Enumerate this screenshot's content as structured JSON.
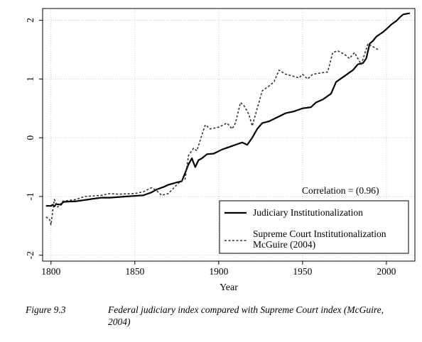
{
  "chart_data": {
    "type": "line",
    "xlabel": "Year",
    "ylabel": "",
    "xlim": [
      1795,
      2017
    ],
    "ylim": [
      -2.1,
      2.2
    ],
    "xticks": [
      1800,
      1850,
      1900,
      1950,
      2000
    ],
    "yticks": [
      -2,
      -1,
      0,
      1,
      2
    ],
    "grid": true,
    "legend_position": "bottom-right",
    "annotation": "Correlation = (0.96)",
    "series": [
      {
        "name": "Judiciary Institutionalization",
        "style": "solid",
        "x": [
          1797,
          1800,
          1801,
          1802,
          1803,
          1806,
          1807,
          1808,
          1815,
          1825,
          1830,
          1835,
          1845,
          1855,
          1860,
          1863,
          1867,
          1870,
          1875,
          1878,
          1880,
          1882,
          1884,
          1886,
          1888,
          1890,
          1893,
          1897,
          1902,
          1907,
          1912,
          1914,
          1917,
          1920,
          1923,
          1926,
          1930,
          1935,
          1940,
          1945,
          1950,
          1955,
          1958,
          1962,
          1967,
          1970,
          1975,
          1980,
          1983,
          1986,
          1988,
          1990,
          1992,
          1994,
          1996,
          1998,
          2000,
          2003,
          2006,
          2008,
          2010,
          2014
        ],
        "y": [
          -1.16,
          -1.16,
          -1.14,
          -1.17,
          -1.13,
          -1.14,
          -1.1,
          -1.09,
          -1.08,
          -1.04,
          -1.02,
          -1.02,
          -1.0,
          -0.98,
          -0.93,
          -0.88,
          -0.84,
          -0.8,
          -0.76,
          -0.74,
          -0.6,
          -0.45,
          -0.35,
          -0.5,
          -0.38,
          -0.35,
          -0.28,
          -0.27,
          -0.2,
          -0.15,
          -0.1,
          -0.08,
          -0.12,
          0.0,
          0.15,
          0.25,
          0.28,
          0.35,
          0.42,
          0.45,
          0.5,
          0.52,
          0.6,
          0.65,
          0.75,
          0.95,
          1.05,
          1.15,
          1.25,
          1.27,
          1.35,
          1.6,
          1.65,
          1.72,
          1.76,
          1.8,
          1.85,
          1.93,
          1.99,
          2.05,
          2.1,
          2.12
        ]
      },
      {
        "name": "Supreme Court Institutionalization McGuire (2004)",
        "style": "dashed",
        "x": [
          1797,
          1799,
          1800,
          1801,
          1802,
          1804,
          1807,
          1810,
          1815,
          1820,
          1830,
          1835,
          1840,
          1850,
          1855,
          1860,
          1863,
          1866,
          1870,
          1875,
          1877,
          1880,
          1882,
          1885,
          1887,
          1890,
          1892,
          1895,
          1900,
          1905,
          1908,
          1910,
          1913,
          1915,
          1918,
          1920,
          1923,
          1926,
          1930,
          1933,
          1936,
          1940,
          1944,
          1948,
          1950,
          1953,
          1956,
          1960,
          1965,
          1968,
          1971,
          1975,
          1978,
          1981,
          1985,
          1989,
          1992,
          1995
        ],
        "y": [
          -1.35,
          -1.38,
          -1.48,
          -1.25,
          -1.05,
          -1.18,
          -1.08,
          -1.07,
          -1.05,
          -1.0,
          -0.98,
          -0.95,
          -0.96,
          -0.95,
          -0.92,
          -0.85,
          -0.9,
          -0.98,
          -0.95,
          -0.8,
          -0.75,
          -0.7,
          -0.3,
          -0.18,
          -0.22,
          0.05,
          0.22,
          0.15,
          0.18,
          0.25,
          0.15,
          0.25,
          0.6,
          0.55,
          0.4,
          0.2,
          0.5,
          0.8,
          0.88,
          0.95,
          1.15,
          1.08,
          1.05,
          1.02,
          1.08,
          1.0,
          1.08,
          1.1,
          1.12,
          1.45,
          1.48,
          1.42,
          1.35,
          1.45,
          1.25,
          1.6,
          1.55,
          1.5
        ]
      }
    ]
  },
  "caption": {
    "label": "Figure 9.3",
    "text": "Federal judiciary index compared with Supreme Court index (McGuire, 2004)"
  },
  "colors": {
    "solid_line": "#000000",
    "dashed_line": "#333333",
    "grid": "#c8c8c8"
  }
}
